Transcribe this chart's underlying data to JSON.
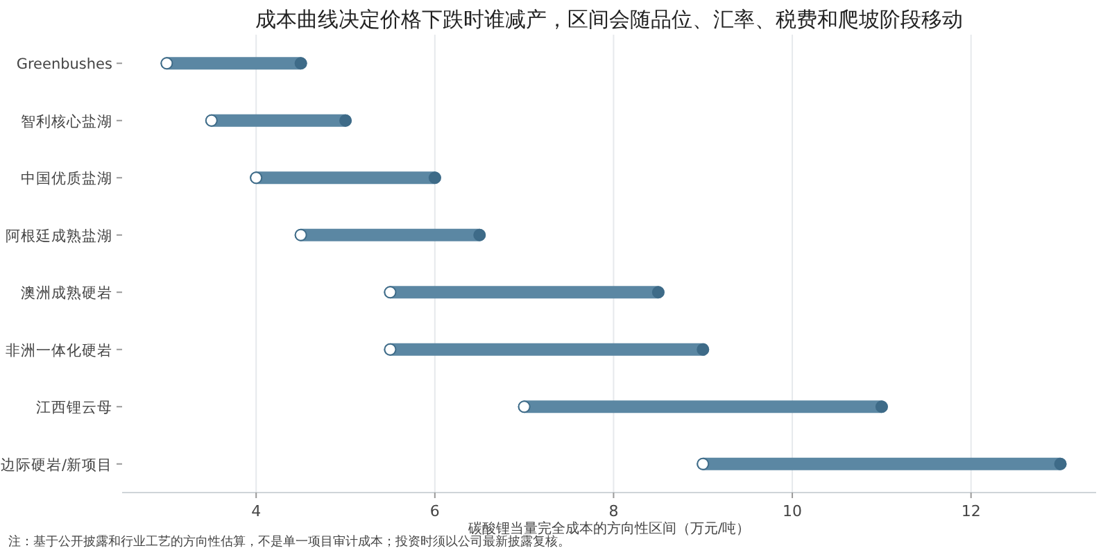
{
  "chart_data": {
    "type": "bar",
    "orientation": "horizontal",
    "title": "成本曲线决定价格下跌时谁减产，区间会随品位、汇率、税费和爬坡阶段移动",
    "xlabel": "碳酸锂当量完全成本的方向性区间（万元/吨）",
    "categories": [
      "Greenbushes",
      "智利核心盐湖",
      "中国优质盐湖",
      "阿根廷成熟盐湖",
      "澳洲成熟硬岩",
      "非洲一体化硬岩",
      "江西锂云母",
      "边际硬岩/新项目"
    ],
    "series": [
      {
        "color": "#5b87a3",
        "base": [
          3,
          3.5,
          4,
          4.5,
          5.5,
          5.5,
          7,
          9
        ],
        "values": [
          1.5,
          1.5,
          2,
          2,
          3,
          3.5,
          4,
          4
        ]
      },
      {
        "type": "scatter",
        "color": "#ffffff",
        "values": [
          3,
          3.5,
          4,
          4.5,
          5.5,
          5.5,
          7,
          9
        ]
      },
      {
        "type": "scatter",
        "color": "#3e6b88",
        "values": [
          4.5,
          5,
          6,
          6.5,
          8.5,
          9,
          11,
          13
        ]
      }
    ],
    "marker": "circle",
    "xlim": [
      2.5,
      13.4
    ],
    "xticks": [
      4,
      6,
      8,
      10,
      12
    ],
    "grid": "x",
    "annotations": [
      "注：基于公开披露和行业工艺的方向性估算，不是单一项目审计成本；投资时须以公司最新披露复核。"
    ]
  }
}
